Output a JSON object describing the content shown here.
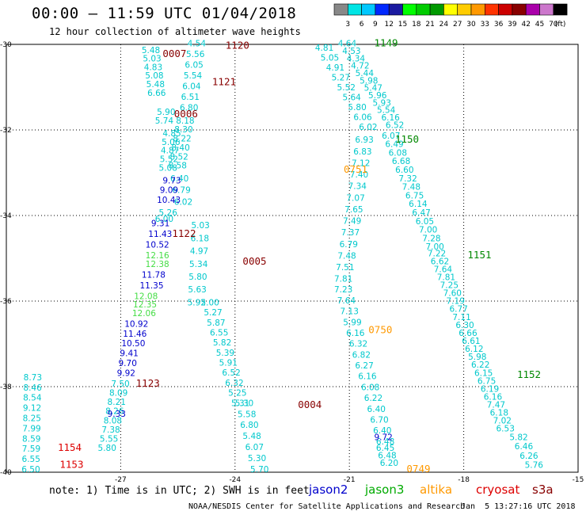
{
  "header": {
    "title": "00:00 – 11:59 UTC 01/04/2018",
    "subtitle": "12 hour collection of altimeter wave heights"
  },
  "color_scale": {
    "labels": [
      "3",
      "6",
      "9",
      "12",
      "15",
      "18",
      "21",
      "24",
      "27",
      "30",
      "33",
      "36",
      "39",
      "42",
      "45",
      "70",
      "(ft)"
    ],
    "colors": [
      "#888888",
      "#00e5e5",
      "#00c8ff",
      "#0028ff",
      "#1a1aa0",
      "#00ff00",
      "#00cc00",
      "#009900",
      "#ffff00",
      "#ffcc00",
      "#ff9900",
      "#ff3300",
      "#cc0000",
      "#880000",
      "#aa00aa",
      "#cc77cc",
      "#000000"
    ]
  },
  "axes": {
    "x_ticks": [
      "-27",
      "-24",
      "-21",
      "-18",
      "-15"
    ],
    "y_ticks": [
      "-30",
      "-32",
      "-34",
      "-36",
      "-38",
      "-40"
    ]
  },
  "palette": {
    "cyan": "#00c8cc",
    "blue": "#0000cc",
    "lgreen": "#44dd44",
    "dred": "#880000",
    "red": "#dd0000",
    "dgreen": "#008800",
    "orange": "#ff9900"
  },
  "satellites": [
    {
      "name": "jason2",
      "color": "#0000cc"
    },
    {
      "name": "jason3",
      "color": "#00aa00"
    },
    {
      "name": "altika",
      "color": "#ff9900"
    },
    {
      "name": "cryosat",
      "color": "#dd0000"
    },
    {
      "name": "s3a",
      "color": "#880000"
    }
  ],
  "footer": {
    "note": "note: 1) Time is in UTC; 2) SWH is in feet",
    "credit": "NOAA/NESDIS Center for Satellite Applications and Research",
    "stamp": "Jan  5 13:27:16 UTC 2018"
  },
  "time_labels": [
    {
      "t": "0007",
      "lon": -25.9,
      "lat": -30.3,
      "c": "dred"
    },
    {
      "t": "1120",
      "lon": -24.25,
      "lat": -30.1,
      "c": "dred"
    },
    {
      "t": "1121",
      "lon": -24.6,
      "lat": -30.95,
      "c": "dred"
    },
    {
      "t": "0006",
      "lon": -25.6,
      "lat": -31.7,
      "c": "dred"
    },
    {
      "t": "1122",
      "lon": -25.65,
      "lat": -34.5,
      "c": "dred"
    },
    {
      "t": "0005",
      "lon": -23.8,
      "lat": -35.15,
      "c": "dred"
    },
    {
      "t": "1123",
      "lon": -26.6,
      "lat": -38.0,
      "c": "dred"
    },
    {
      "t": "0004",
      "lon": -22.35,
      "lat": -38.5,
      "c": "dred"
    },
    {
      "t": "1154",
      "lon": -28.65,
      "lat": -39.5,
      "c": "red"
    },
    {
      "t": "1153",
      "lon": -28.6,
      "lat": -39.9,
      "c": "red"
    },
    {
      "t": "1149",
      "lon": -20.35,
      "lat": -30.05,
      "c": "dgreen"
    },
    {
      "t": "1150",
      "lon": -19.8,
      "lat": -32.3,
      "c": "dgreen"
    },
    {
      "t": "1151",
      "lon": -17.9,
      "lat": -35.0,
      "c": "dgreen"
    },
    {
      "t": "1152",
      "lon": -16.6,
      "lat": -37.8,
      "c": "dgreen"
    },
    {
      "t": "0751",
      "lon": -21.15,
      "lat": -33.0,
      "c": "orange"
    },
    {
      "t": "0750",
      "lon": -20.5,
      "lat": -36.75,
      "c": "orange"
    },
    {
      "t": "0749",
      "lon": -19.5,
      "lat": -40.0,
      "c": "orange"
    }
  ],
  "tracks": [
    {
      "lon0": -26.45,
      "lat0": -30.2,
      "lon1": -26.3,
      "lat1": -31.2,
      "c": "cyan",
      "v": [
        "5.48",
        "5.03",
        "4.83",
        "5.08",
        "5.48",
        "6.66"
      ]
    },
    {
      "lon0": -25.25,
      "lat0": -30.05,
      "lon1": -25.45,
      "lat1": -31.55,
      "c": "cyan",
      "v": [
        "4.54",
        "5.56",
        "6.05",
        "5.54",
        "6.04",
        "6.51",
        "6.80"
      ]
    },
    {
      "lon0": -26.05,
      "lat0": -31.65,
      "lon1": -26.1,
      "lat1": -31.85,
      "c": "cyan",
      "v": [
        "5.90",
        "5.74"
      ]
    },
    {
      "lon0": -25.55,
      "lat0": -31.85,
      "lon1": -25.75,
      "lat1": -32.9,
      "c": "cyan",
      "v": [
        "8.18",
        "8.30",
        "8.22",
        "8.40",
        "8.52",
        "8.58"
      ]
    },
    {
      "lon0": -25.9,
      "lat0": -32.15,
      "lon1": -26.0,
      "lat1": -32.95,
      "c": "cyan",
      "v": [
        "4.85",
        "5.06",
        "4.87",
        "5.52",
        "5.08"
      ]
    },
    {
      "lon0": -25.7,
      "lat0": -33.2,
      "lon1": -25.6,
      "lat1": -33.75,
      "c": "cyan",
      "v": [
        "6.40",
        "6.79",
        "6.02"
      ]
    },
    {
      "lon0": -25.9,
      "lat0": -33.25,
      "lon1": -26.05,
      "lat1": -33.7,
      "c": "blue",
      "v": [
        "9.73",
        "9.09",
        "10.43"
      ]
    },
    {
      "lon0": -26.0,
      "lat0": -34.0,
      "lon1": -26.1,
      "lat1": -34.15,
      "c": "cyan",
      "v": [
        "5.26",
        "6.00"
      ]
    },
    {
      "lon0": -25.15,
      "lat0": -34.3,
      "lon1": -25.25,
      "lat1": -36.1,
      "c": "cyan",
      "v": [
        "5.03",
        "6.18",
        "4.97",
        "5.34",
        "5.80",
        "5.63",
        "5.92"
      ]
    },
    {
      "lon0": -26.2,
      "lat0": -34.25,
      "lon1": -26.35,
      "lat1": -34.75,
      "c": "blue",
      "v": [
        "9.31",
        "11.43",
        "10.52"
      ]
    },
    {
      "lon0": -26.35,
      "lat0": -35.0,
      "lon1": -26.35,
      "lat1": -35.2,
      "c": "lgreen",
      "v": [
        "12.16",
        "12.38"
      ]
    },
    {
      "lon0": -26.45,
      "lat0": -35.45,
      "lon1": -26.5,
      "lat1": -35.7,
      "c": "blue",
      "v": [
        "11.78",
        "11.35"
      ]
    },
    {
      "lon0": -26.65,
      "lat0": -35.95,
      "lon1": -26.7,
      "lat1": -36.35,
      "c": "lgreen",
      "v": [
        "12.08",
        "12.35",
        "12.06"
      ]
    },
    {
      "lon0": -26.9,
      "lat0": -36.6,
      "lon1": -27.1,
      "lat1": -37.75,
      "c": "blue",
      "v": [
        "10.92",
        "11.46",
        "10.50",
        "9.41",
        "9.70",
        "9.92"
      ]
    },
    {
      "lon0": -24.9,
      "lat0": -36.1,
      "lon1": -24.1,
      "lat1": -38.45,
      "c": "cyan",
      "v": [
        "5.00",
        "5.27",
        "5.87",
        "6.55",
        "5.82",
        "5.39",
        "5.91",
        "6.52",
        "6.32",
        "5.25",
        "5.31"
      ]
    },
    {
      "lon0": -24.0,
      "lat0": -38.45,
      "lon1": -23.6,
      "lat1": -40.0,
      "c": "cyan",
      "v": [
        "5.30",
        "5.58",
        "6.80",
        "5.48",
        "6.07",
        "5.30",
        "5.70"
      ]
    },
    {
      "lon0": -27.25,
      "lat0": -38.0,
      "lon1": -27.6,
      "lat1": -39.5,
      "c": "cyan",
      "v": [
        "7.50",
        "8.09",
        "8.21",
        "8.26",
        "8.08",
        "7.38",
        "5.55",
        "5.80"
      ]
    },
    {
      "lon0": -27.35,
      "lat0": -38.7,
      "lon1": -27.4,
      "lat1": -38.7,
      "c": "blue",
      "v": [
        "9.33"
      ]
    },
    {
      "lon0": -29.55,
      "lat0": -37.85,
      "lon1": -29.6,
      "lat1": -40.0,
      "c": "cyan",
      "v": [
        "8.73",
        "8.46",
        "8.54",
        "9.12",
        "8.25",
        "7.99",
        "8.59",
        "7.59",
        "6.55",
        "6.50"
      ]
    },
    {
      "lon0": -21.9,
      "lat0": -30.15,
      "lon1": -20.75,
      "lat1": -32.0,
      "c": "cyan",
      "v": [
        "4.81",
        "5.05",
        "4.91",
        "5.27",
        "5.52",
        "5.64",
        "5.80",
        "6.06",
        "6.02"
      ]
    },
    {
      "lon0": -21.3,
      "lat0": -30.05,
      "lon1": -20.05,
      "lat1": -31.95,
      "c": "cyan",
      "v": [
        "4.64",
        "4.53",
        "4.34",
        "4.72",
        "5.44",
        "5.98",
        "5.47",
        "5.96",
        "5.93",
        "5.54",
        "6.16",
        "6.52"
      ]
    },
    {
      "lon0": -20.85,
      "lat0": -32.3,
      "lon1": -21.4,
      "lat1": -35.55,
      "c": "cyan",
      "v": [
        "6.93",
        "6.83",
        "7.12",
        "7.40",
        "7.34",
        "7.07",
        "7.65",
        "7.49",
        "7.37",
        "6.79",
        "7.48",
        "7.51",
        "7.81"
      ]
    },
    {
      "lon0": -21.4,
      "lat0": -35.8,
      "lon1": -20.3,
      "lat1": -39.35,
      "c": "cyan",
      "v": [
        "7.23",
        "7.64",
        "7.13",
        "5.99",
        "6.16",
        "6.32",
        "6.82",
        "6.27",
        "6.16",
        "6.08",
        "6.22",
        "6.40",
        "6.70",
        "6.40",
        "6.48"
      ]
    },
    {
      "lon0": -20.3,
      "lat0": -39.5,
      "lon1": -20.2,
      "lat1": -39.85,
      "c": "cyan",
      "v": [
        "6.45",
        "6.48",
        "6.20"
      ]
    },
    {
      "lon0": -20.35,
      "lat0": -39.25,
      "lon1": -20.35,
      "lat1": -39.25,
      "c": "blue",
      "v": [
        "9.72"
      ]
    },
    {
      "lon0": -20.15,
      "lat0": -32.2,
      "lon1": -19.0,
      "lat1": -34.8,
      "c": "cyan",
      "v": [
        "6.07",
        "6.49",
        "6.08",
        "6.68",
        "6.60",
        "7.32",
        "7.48",
        "6.75",
        "6.14",
        "6.47",
        "6.05",
        "7.00",
        "7.28",
        "7.00"
      ]
    },
    {
      "lon0": -18.95,
      "lat0": -34.95,
      "lon1": -17.15,
      "lat1": -39.05,
      "c": "cyan",
      "v": [
        "7.22",
        "6.62",
        "7.64",
        "7.81",
        "7.25",
        "7.60",
        "7.19",
        "6.77",
        "7.11",
        "6.30",
        "6.66",
        "6.61",
        "6.12",
        "5.98",
        "6.22",
        "6.15",
        "6.75",
        "6.19",
        "6.16",
        "7.47",
        "6.18",
        "7.02",
        "6.53"
      ]
    },
    {
      "lon0": -16.8,
      "lat0": -39.25,
      "lon1": -16.4,
      "lat1": -39.9,
      "c": "cyan",
      "v": [
        "5.82",
        "6.46",
        "6.26",
        "5.76"
      ]
    }
  ]
}
